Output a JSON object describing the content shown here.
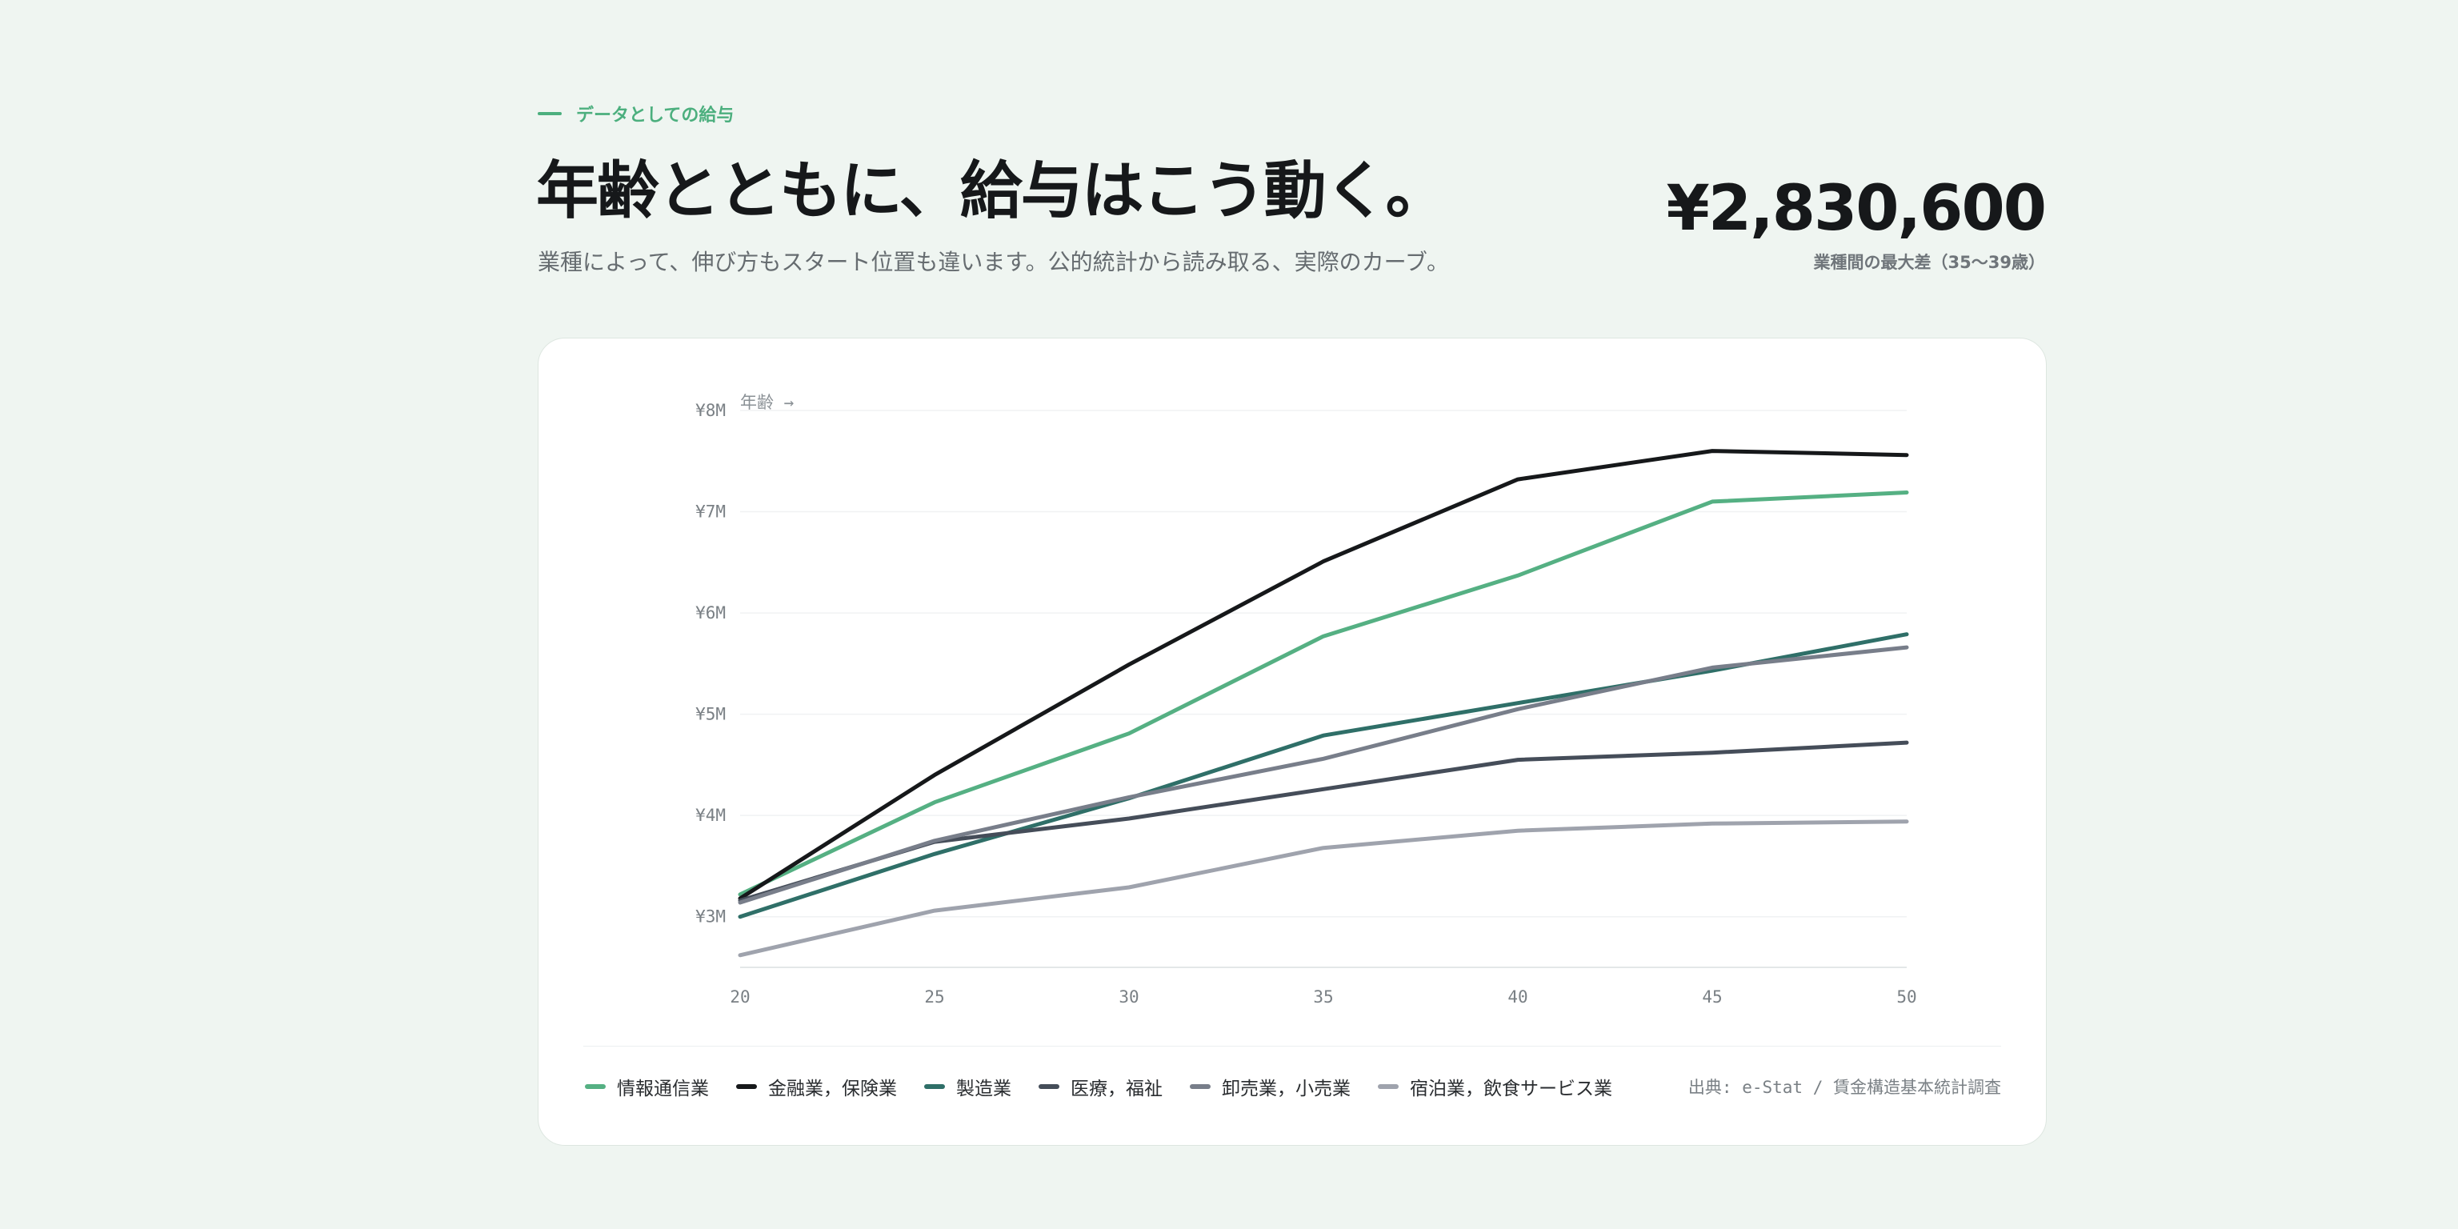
{
  "header": {
    "eyebrow": "データとしての給与",
    "title": "年齢とともに、給与はこう動く。",
    "subtitle": "業種によって、伸び方もスタート位置も違います。公的統計から読み取る、実際のカーブ。"
  },
  "stat": {
    "value": "¥2,830,600",
    "label": "業種間の最大差（35〜39歳）"
  },
  "source": "出典: e-Stat / 賃金構造基本統計調査",
  "chart_data": {
    "type": "line",
    "title": "",
    "xlabel": "年齢 →",
    "ylabel": "",
    "x": [
      20,
      25,
      30,
      35,
      40,
      45,
      50
    ],
    "x_tick_labels": [
      "20",
      "25",
      "30",
      "35",
      "40",
      "45",
      "50"
    ],
    "ylim": [
      2500000,
      8000000
    ],
    "y_ticks": [
      3000000,
      4000000,
      5000000,
      6000000,
      7000000,
      8000000
    ],
    "y_tick_labels": [
      "¥3M",
      "¥4M",
      "¥5M",
      "¥6M",
      "¥7M",
      "¥8M"
    ],
    "grid": true,
    "legend": "bottom",
    "series": [
      {
        "name": "情報通信業",
        "color": "#55b083",
        "values": [
          3220000,
          4130000,
          4810000,
          5770000,
          6370000,
          7100000,
          7190000
        ]
      },
      {
        "name": "金融業，保険業",
        "color": "#16181a",
        "values": [
          3180000,
          4400000,
          5490000,
          6510000,
          7320000,
          7600000,
          7560000
        ]
      },
      {
        "name": "製造業",
        "color": "#2f6f68",
        "values": [
          3000000,
          3620000,
          4170000,
          4790000,
          5110000,
          5430000,
          5790000
        ]
      },
      {
        "name": "医療，福祉",
        "color": "#454d59",
        "values": [
          3160000,
          3740000,
          3970000,
          4260000,
          4550000,
          4620000,
          4720000
        ]
      },
      {
        "name": "卸売業，小売業",
        "color": "#787e8a",
        "values": [
          3140000,
          3750000,
          4180000,
          4560000,
          5050000,
          5460000,
          5660000
        ]
      },
      {
        "name": "宿泊業，飲食サービス業",
        "color": "#9fa3ad",
        "values": [
          2620000,
          3060000,
          3290000,
          3680000,
          3850000,
          3920000,
          3940000
        ]
      }
    ]
  }
}
